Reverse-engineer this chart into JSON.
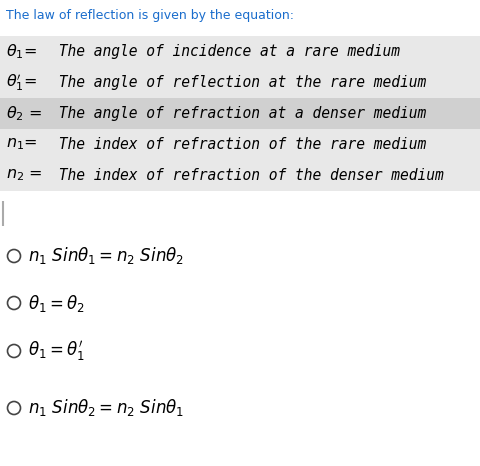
{
  "title": "The law of reflection is given by the equation:",
  "title_color": "#1a6dcc",
  "white_bg": "#ffffff",
  "row_bg_light": "#e8e8e8",
  "row_bg_mid": "#d8d8d8",
  "definition_rows": [
    {
      "label": "$\\theta_1$= ",
      "text": " The angle of incidence at a rare medium",
      "bg": "#e8e8e8"
    },
    {
      "label": "$\\theta_1'$= ",
      "text": " The angle of reflection at the rare medium",
      "bg": "#e8e8e8"
    },
    {
      "label": "$\\theta_2$ = ",
      "text": " The angle of refraction at a denser medium",
      "bg": "#d0d0d0"
    },
    {
      "label": "$n_1$= ",
      "text": " The index of refraction of the rare medium",
      "bg": "#e8e8e8"
    },
    {
      "label": "$n_2$ = ",
      "text": " The index of refraction of the denser medium",
      "bg": "#e8e8e8"
    }
  ],
  "options": [
    "$n_1\\ Sin\\theta_1 = n_2\\ Sin\\theta_2$",
    "$\\theta_1 = \\theta_2$",
    "$\\theta_1 = \\theta_1'$",
    "$n_1\\ Sin\\theta_2 = n_2\\ Sin\\theta_1$"
  ],
  "figsize": [
    4.81,
    4.66
  ],
  "dpi": 100
}
